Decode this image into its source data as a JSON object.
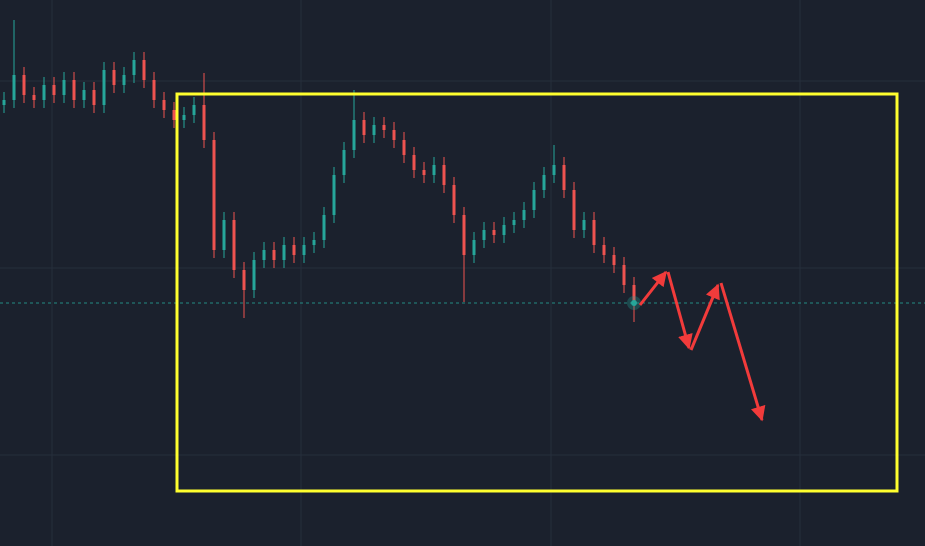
{
  "chart_data": {
    "type": "candlestick",
    "open": [
      441,
      446,
      471,
      451,
      446,
      461,
      451,
      466,
      446,
      456,
      441,
      476,
      461,
      471,
      486,
      466,
      446,
      436,
      426,
      431,
      441,
      406,
      296,
      326,
      276,
      256,
      286,
      296,
      286,
      301,
      291,
      301,
      306,
      331,
      371,
      396,
      426,
      411,
      421,
      416,
      406,
      391,
      376,
      371,
      381,
      361,
      331,
      291,
      306,
      316,
      311,
      321,
      326,
      336,
      356,
      371,
      381,
      356,
      316,
      326,
      301,
      291,
      281,
      261
    ],
    "high": [
      454,
      526,
      479,
      459,
      469,
      469,
      474,
      474,
      464,
      464,
      484,
      484,
      479,
      494,
      494,
      474,
      454,
      444,
      439,
      449,
      473,
      414,
      334,
      334,
      284,
      294,
      304,
      304,
      309,
      309,
      309,
      314,
      339,
      379,
      404,
      456,
      434,
      429,
      429,
      424,
      414,
      399,
      384,
      389,
      389,
      369,
      339,
      314,
      324,
      324,
      329,
      334,
      344,
      364,
      379,
      401,
      389,
      364,
      334,
      334,
      309,
      299,
      289,
      269
    ],
    "low": [
      433,
      438,
      443,
      438,
      438,
      443,
      443,
      438,
      438,
      433,
      433,
      453,
      453,
      463,
      458,
      438,
      428,
      418,
      418,
      423,
      398,
      288,
      288,
      268,
      228,
      248,
      278,
      278,
      278,
      283,
      283,
      293,
      298,
      323,
      363,
      388,
      403,
      403,
      408,
      398,
      383,
      368,
      363,
      363,
      353,
      323,
      244,
      283,
      298,
      303,
      303,
      313,
      318,
      328,
      348,
      363,
      348,
      308,
      308,
      293,
      283,
      273,
      253,
      224
    ],
    "close": [
      446,
      471,
      451,
      446,
      461,
      451,
      466,
      446,
      456,
      441,
      476,
      461,
      471,
      486,
      466,
      446,
      436,
      426,
      431,
      441,
      406,
      296,
      326,
      276,
      256,
      286,
      296,
      286,
      301,
      291,
      301,
      306,
      331,
      371,
      396,
      426,
      411,
      421,
      416,
      406,
      391,
      376,
      371,
      381,
      361,
      331,
      291,
      306,
      316,
      311,
      321,
      326,
      336,
      356,
      371,
      381,
      356,
      316,
      326,
      301,
      291,
      281,
      261,
      243
    ],
    "up_color": "#26a69a",
    "down_color": "#ef5350",
    "ylim": [
      0,
      546
    ]
  }
}
